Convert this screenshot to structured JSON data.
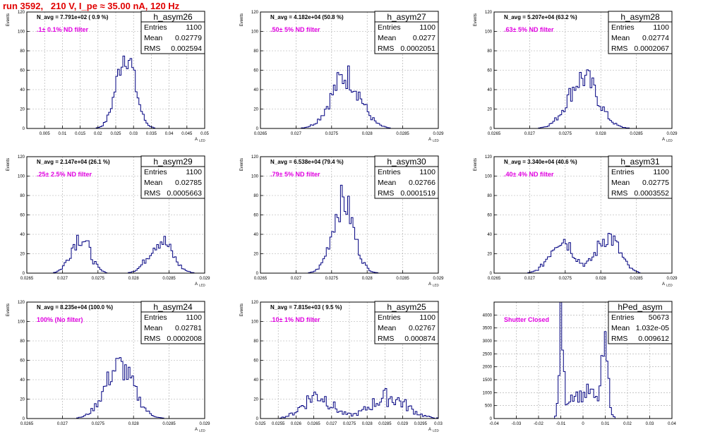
{
  "page": {
    "title": "run 3592,   210 V, I_pe ≈ 35.00 nA, 120 Hz"
  },
  "chart_data": [
    {
      "type": "bar",
      "histname": "h_asym26",
      "navg": "N_avg = 7.791e+02 ( 0.9 %)",
      "note": ".1± 0.1% ND filter",
      "stats": [
        [
          "Entries",
          "1100"
        ],
        [
          "Mean",
          "0.02779"
        ],
        [
          "RMS",
          "0.002594"
        ]
      ],
      "ylabel": "Events",
      "xlabel": "A",
      "xsub": "LED",
      "xlim": [
        0.0,
        0.05
      ],
      "ylim": [
        0,
        120
      ],
      "xticks": [
        0.005,
        0.01,
        0.015,
        0.02,
        0.025,
        0.03,
        0.035,
        0.04,
        0.045,
        0.05
      ],
      "xticklabels": [
        "0.005",
        "0.01",
        "0.015",
        "0.02",
        "0.025",
        "0.03",
        "0.035",
        "0.04",
        "0.045",
        "0.05"
      ],
      "yticks": [
        0,
        20,
        40,
        60,
        80,
        100,
        120
      ],
      "shape": {
        "peaks": [
          {
            "c": 0.0278,
            "s": 0.0026,
            "h": 78
          }
        ],
        "noise": 0.22
      }
    },
    {
      "type": "bar",
      "histname": "h_asym27",
      "navg": "N_avg = 4.182e+04 (50.8 %)",
      "note": ".50± 5% ND filter",
      "stats": [
        [
          "Entries",
          "1100"
        ],
        [
          "Mean",
          "0.0277"
        ],
        [
          "RMS",
          "0.0002051"
        ]
      ],
      "ylabel": "Events",
      "xlabel": "A",
      "xsub": "LED",
      "xlim": [
        0.0265,
        0.029
      ],
      "ylim": [
        0,
        120
      ],
      "xticks": [
        0.0265,
        0.027,
        0.0275,
        0.028,
        0.0285,
        0.029
      ],
      "xticklabels": [
        "0.0265",
        "0.027",
        "0.0275",
        "0.028",
        "0.0285",
        "0.029"
      ],
      "yticks": [
        0,
        20,
        40,
        60,
        80,
        100,
        120
      ],
      "shape": {
        "peaks": [
          {
            "c": 0.0277,
            "s": 0.000205,
            "h": 54
          }
        ],
        "noise": 0.28
      }
    },
    {
      "type": "bar",
      "histname": "h_asym28",
      "navg": "N_avg = 5.207e+04 (63.2 %)",
      "note": ".63± 5% ND filter",
      "stats": [
        [
          "Entries",
          "1100"
        ],
        [
          "Mean",
          "0.02774"
        ],
        [
          "RMS",
          "0.0002067"
        ]
      ],
      "ylabel": "Events",
      "xlabel": "A",
      "xsub": "LED",
      "xlim": [
        0.0265,
        0.029
      ],
      "ylim": [
        0,
        120
      ],
      "xticks": [
        0.0265,
        0.027,
        0.0275,
        0.028,
        0.0285,
        0.029
      ],
      "xticklabels": [
        "0.0265",
        "0.027",
        "0.0275",
        "0.028",
        "0.0285",
        "0.029"
      ],
      "yticks": [
        0,
        20,
        40,
        60,
        80,
        100,
        120
      ],
      "shape": {
        "peaks": [
          {
            "c": 0.02775,
            "s": 0.000207,
            "h": 52
          }
        ],
        "noise": 0.28
      }
    },
    {
      "type": "bar",
      "histname": "h_asym29",
      "navg": "N_avg = 2.147e+04 (26.1 %)",
      "note": ".25± 2.5% ND filter",
      "stats": [
        [
          "Entries",
          "1100"
        ],
        [
          "Mean",
          "0.02785"
        ],
        [
          "RMS",
          "0.0005663"
        ]
      ],
      "ylabel": "Events",
      "xlabel": "A",
      "xsub": "LED",
      "xlim": [
        0.0265,
        0.029
      ],
      "ylim": [
        0,
        120
      ],
      "xticks": [
        0.0265,
        0.027,
        0.0275,
        0.028,
        0.0285,
        0.029
      ],
      "xticklabels": [
        "0.0265",
        "0.027",
        "0.0275",
        "0.028",
        "0.0285",
        "0.029"
      ],
      "yticks": [
        0,
        20,
        40,
        60,
        80,
        100,
        120
      ],
      "shape": {
        "peaks": [
          {
            "c": 0.02725,
            "s": 0.00013,
            "h": 38
          },
          {
            "c": 0.02838,
            "s": 0.00016,
            "h": 34
          }
        ],
        "noise": 0.3
      }
    },
    {
      "type": "bar",
      "histname": "h_asym30",
      "navg": "N_avg = 6.538e+04 (79.4 %)",
      "note": ".79± 5% ND filter",
      "stats": [
        [
          "Entries",
          "1100"
        ],
        [
          "Mean",
          "0.02766"
        ],
        [
          "RMS",
          "0.0001519"
        ]
      ],
      "ylabel": "Events",
      "xlabel": "A",
      "xsub": "LED",
      "xlim": [
        0.0265,
        0.029
      ],
      "ylim": [
        0,
        120
      ],
      "xticks": [
        0.0265,
        0.027,
        0.0275,
        0.028,
        0.0285,
        0.029
      ],
      "xticklabels": [
        "0.0265",
        "0.027",
        "0.0275",
        "0.028",
        "0.0285",
        "0.029"
      ],
      "yticks": [
        0,
        20,
        40,
        60,
        80,
        100,
        120
      ],
      "shape": {
        "peaks": [
          {
            "c": 0.02766,
            "s": 0.00015,
            "h": 74
          }
        ],
        "noise": 0.25
      }
    },
    {
      "type": "bar",
      "histname": "h_asym31",
      "navg": "N_avg = 3.340e+04 (40.6 %)",
      "note": ".40± 4% ND filter",
      "stats": [
        [
          "Entries",
          "1100"
        ],
        [
          "Mean",
          "0.02775"
        ],
        [
          "RMS",
          "0.0003552"
        ]
      ],
      "ylabel": "Events",
      "xlabel": "A",
      "xsub": "LED",
      "xlim": [
        0.0265,
        0.029
      ],
      "ylim": [
        0,
        120
      ],
      "xticks": [
        0.0265,
        0.027,
        0.0275,
        0.028,
        0.0285,
        0.029
      ],
      "xticklabels": [
        "0.0265",
        "0.027",
        "0.0275",
        "0.028",
        "0.0285",
        "0.029"
      ],
      "yticks": [
        0,
        20,
        40,
        60,
        80,
        100,
        120
      ],
      "shape": {
        "peaks": [
          {
            "c": 0.02745,
            "s": 0.00016,
            "h": 36
          },
          {
            "c": 0.0281,
            "s": 0.00016,
            "h": 38
          }
        ],
        "noise": 0.3
      }
    },
    {
      "type": "bar",
      "histname": "h_asym24",
      "navg": "N_avg = 8.235e+04 (100.0 %)",
      "note": "100% (No filter)",
      "stats": [
        [
          "Entries",
          "1100"
        ],
        [
          "Mean",
          "0.02781"
        ],
        [
          "RMS",
          "0.0002008"
        ]
      ],
      "ylabel": "Events",
      "xlabel": "A",
      "xsub": "LED",
      "xlim": [
        0.0265,
        0.029
      ],
      "ylim": [
        0,
        120
      ],
      "xticks": [
        0.0265,
        0.027,
        0.0275,
        0.028,
        0.0285,
        0.029
      ],
      "xticklabels": [
        "0.0265",
        "0.027",
        "0.0275",
        "0.028",
        "0.0285",
        "0.029"
      ],
      "yticks": [
        0,
        20,
        40,
        60,
        80,
        100,
        120
      ],
      "shape": {
        "peaks": [
          {
            "c": 0.0278,
            "s": 0.0002,
            "h": 54
          }
        ],
        "noise": 0.28
      }
    },
    {
      "type": "bar",
      "histname": "h_asym25",
      "navg": "N_avg = 7.815e+03 ( 9.5 %)",
      "note": ".10± 1% ND filter",
      "stats": [
        [
          "Entries",
          "1100"
        ],
        [
          "Mean",
          "0.02767"
        ],
        [
          "RMS",
          "0.000874"
        ]
      ],
      "ylabel": "Events",
      "xlabel": "A",
      "xsub": "LED",
      "xlim": [
        0.025,
        0.03
      ],
      "ylim": [
        0,
        120
      ],
      "xticks": [
        0.025,
        0.0255,
        0.026,
        0.0265,
        0.027,
        0.0275,
        0.028,
        0.0285,
        0.029,
        0.0295,
        0.03
      ],
      "xticklabels": [
        "0.025",
        "0.0255",
        "0.026",
        "0.0265",
        "0.027",
        "0.0275",
        "0.028",
        "0.0285",
        "0.029",
        "0.0295",
        "0.03"
      ],
      "yticks": [
        0,
        20,
        40,
        60,
        80,
        100,
        120
      ],
      "shape": {
        "peaks": [
          {
            "c": 0.0266,
            "s": 0.0004,
            "h": 24
          },
          {
            "c": 0.0286,
            "s": 0.0005,
            "h": 22
          }
        ],
        "noise": 0.45
      }
    },
    {
      "type": "bar",
      "histname": "hPed_asym",
      "navg": "",
      "note": "Shutter Closed",
      "stats": [
        [
          "Entries",
          "50673"
        ],
        [
          "Mean",
          "1.032e-05"
        ],
        [
          "RMS",
          "0.009612"
        ]
      ],
      "ylabel": "",
      "xlabel": "",
      "xsub": "",
      "xlim": [
        -0.04,
        0.04
      ],
      "ylim": [
        0,
        4500
      ],
      "xticks": [
        -0.04,
        -0.03,
        -0.02,
        -0.01,
        0,
        0.01,
        0.02,
        0.03,
        0.04
      ],
      "xticklabels": [
        "-0.04",
        "-0.03",
        "-0.02",
        "-0.01",
        "0",
        "0.01",
        "0.02",
        "0.03",
        "0.04"
      ],
      "yticks": [
        0,
        500,
        1000,
        1500,
        2000,
        2500,
        3000,
        3500,
        4000
      ],
      "shape": {
        "peaks": [
          {
            "c": -0.0098,
            "s": 0.0009,
            "h": 3600
          },
          {
            "c": -0.0045,
            "s": 0.003,
            "h": 900
          },
          {
            "c": 0.003,
            "s": 0.003,
            "h": 1000
          },
          {
            "c": 0.0098,
            "s": 0.0015,
            "h": 2600
          }
        ],
        "noise": 0.3,
        "clip": [
          -0.016,
          0.016
        ]
      }
    }
  ]
}
